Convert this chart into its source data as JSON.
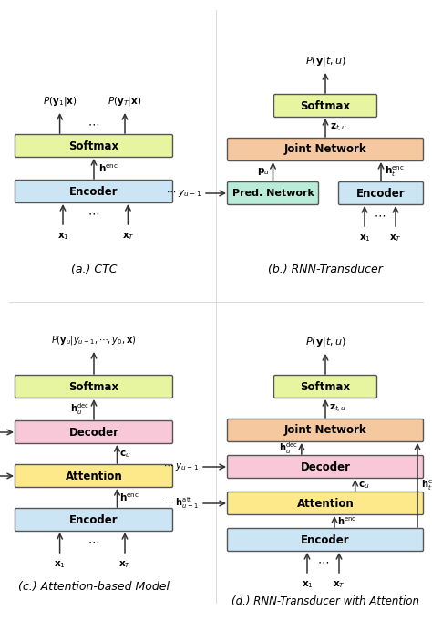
{
  "colors": {
    "softmax": "#e8f5a0",
    "encoder": "#cce5f5",
    "decoder": "#f9c8d8",
    "attention": "#fde98a",
    "joint": "#f5c8a0",
    "pred_network": "#b8ecd8",
    "background": "#ffffff",
    "border": "#555555",
    "arrow": "#333333",
    "text": "#000000"
  },
  "caption_a": "(a.) CTC",
  "caption_b": "(b.) RNN-Transducer",
  "caption_c": "(c.) Attention-based Model",
  "caption_d": "(d.) RNN-Transducer with Attention"
}
